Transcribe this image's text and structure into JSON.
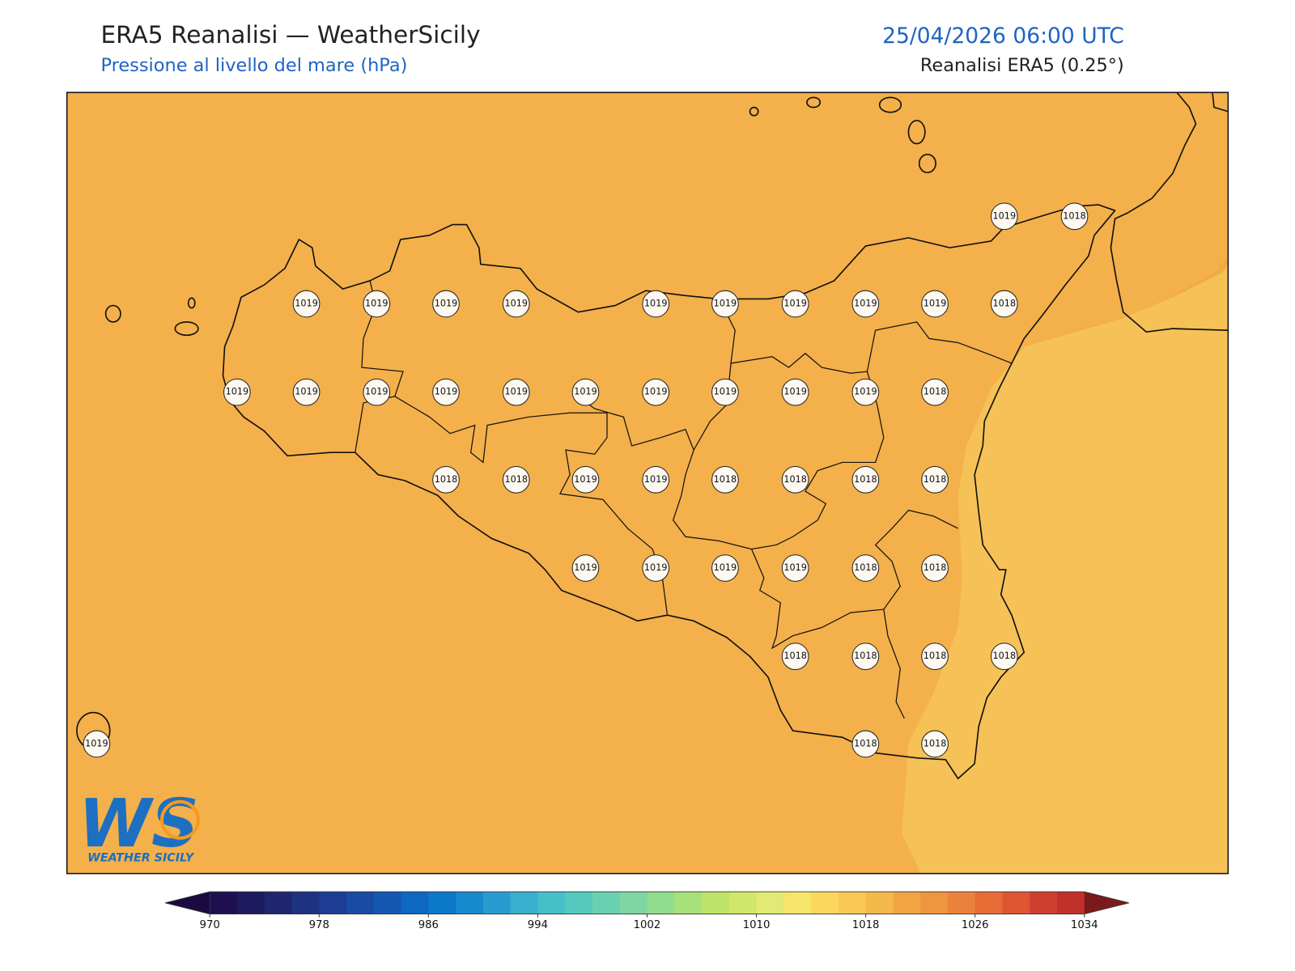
{
  "header": {
    "title": "ERA5 Reanalisi — WeatherSicily",
    "subtitle": "Pressione al livello del mare (hPa)",
    "datetime": "25/04/2026 06:00 UTC",
    "source": "Reanalisi ERA5 (0.25°)"
  },
  "stations": [
    1019,
    1018,
    1019,
    1019,
    1019,
    1019,
    1019,
    1019,
    1019,
    1019,
    1019,
    1018,
    1019,
    1019,
    1019,
    1019,
    1019,
    1019,
    1019,
    1019,
    1019,
    1019,
    1018,
    1018,
    1018,
    1019,
    1019,
    1018,
    1018,
    1018,
    1018,
    1019,
    1019,
    1019,
    1019,
    1018,
    1018,
    1018,
    1018,
    1018,
    1018,
    1019,
    1018,
    1018
  ],
  "colorbar": {
    "lim": [
      970,
      1034
    ],
    "ticks": [
      970,
      978,
      986,
      994,
      1002,
      1010,
      1018,
      1026,
      1034
    ],
    "colors": [
      "#1e1050",
      "#1e1a5e",
      "#1f2670",
      "#1e3282",
      "#1c3d93",
      "#1a4aa3",
      "#1558b2",
      "#0e67c0",
      "#0c78c8",
      "#1789cd",
      "#2a9bd0",
      "#38b0ce",
      "#45c0c9",
      "#56c9bf",
      "#69d1b2",
      "#7ed6a2",
      "#92dc8e",
      "#a8e07a",
      "#bde468",
      "#d1e76a",
      "#e2e974",
      "#f5e56a",
      "#fbd75e",
      "#f9c855",
      "#f5b84b",
      "#f2a543",
      "#ee9540",
      "#eb823b",
      "#e76c36",
      "#de5532",
      "#cf3f2f",
      "#c2302c"
    ],
    "under_color": "#1a0a40",
    "over_color": "#7a1a1a"
  },
  "logo": {
    "mark": "WS",
    "name": "WEATHER SICILY"
  }
}
